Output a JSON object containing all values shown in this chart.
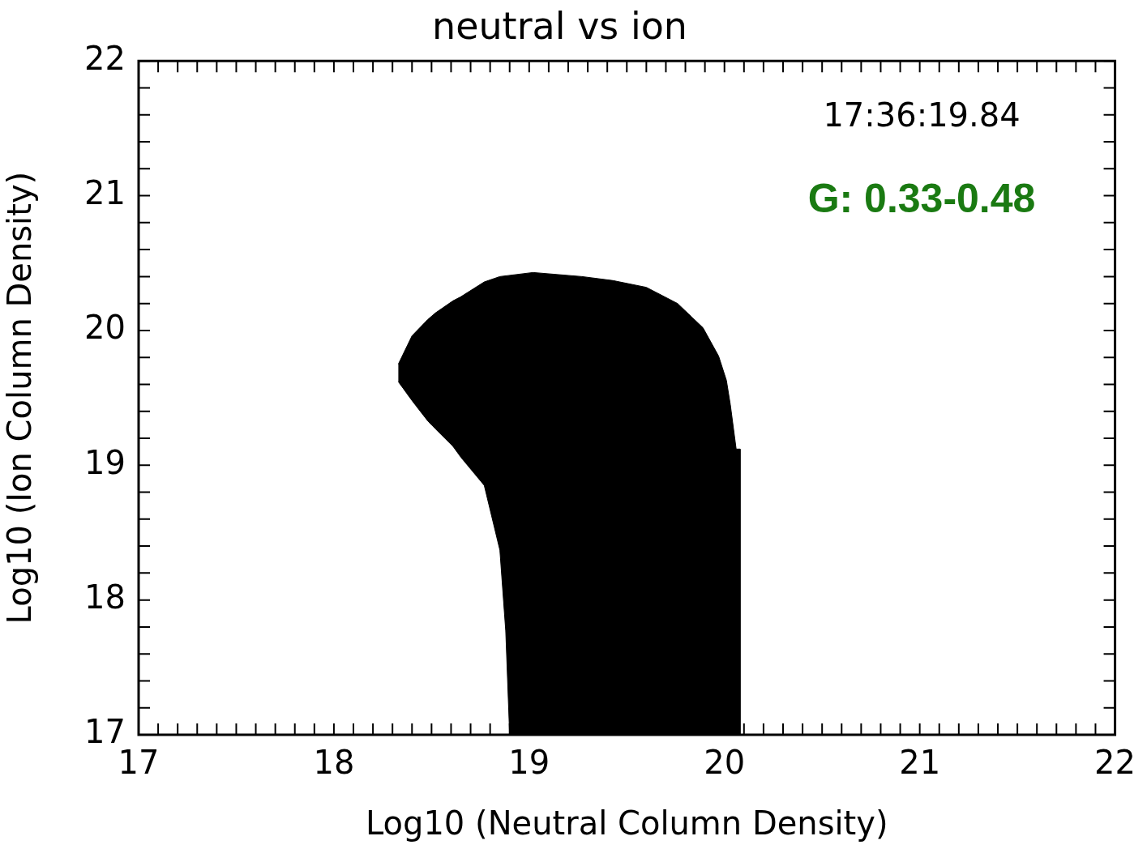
{
  "chart_data": {
    "type": "area",
    "title": "neutral vs ion",
    "xlabel": "Log10 (Neutral Column Density)",
    "ylabel": "Log10 (Ion Column Density)",
    "xlim": [
      17,
      22
    ],
    "ylim": [
      17,
      22
    ],
    "xticks": [
      17,
      18,
      19,
      20,
      21,
      22
    ],
    "yticks": [
      17,
      18,
      19,
      20,
      21,
      22
    ],
    "annotations": [
      "17:36:19.84",
      "G: 0.33-0.48"
    ],
    "series": [
      {
        "type": "area",
        "color": "#000000",
        "x": [
          18.33,
          18.4,
          18.48,
          18.52,
          18.61,
          18.65,
          18.77,
          18.85,
          19.02,
          19.27,
          19.43,
          19.6,
          19.76,
          19.89,
          19.97,
          20.01,
          20.03,
          20.06,
          20.08,
          20.08,
          18.9,
          18.88,
          18.85,
          18.81,
          18.77,
          18.65,
          18.61,
          18.52,
          18.48,
          18.4,
          18.33
        ],
        "values": [
          19.75,
          19.96,
          20.08,
          20.13,
          20.22,
          20.25,
          20.36,
          20.4,
          20.43,
          20.4,
          20.37,
          20.32,
          20.2,
          20.02,
          19.81,
          19.63,
          19.45,
          19.12,
          19.12,
          17,
          17,
          17.77,
          18.37,
          18.61,
          18.85,
          19.06,
          19.14,
          19.27,
          19.33,
          19.48,
          19.62
        ]
      }
    ]
  }
}
